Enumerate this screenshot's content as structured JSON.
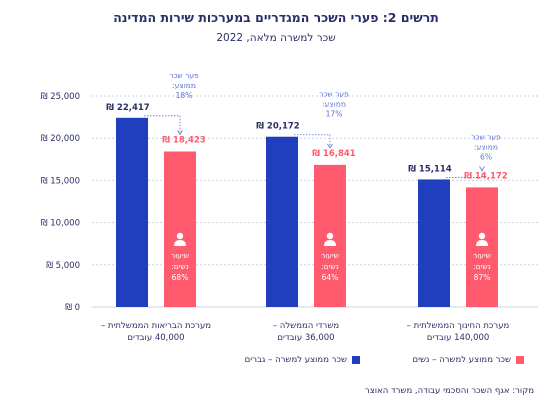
{
  "header": {
    "title": "תרשים 2: פערי השכר המגדריים במערכות שירות המדינה",
    "subtitle": "שכר למשרה מלאה, 2022"
  },
  "legend": {
    "men": "שכר ממוצע למשרה – גברים",
    "women": "שכר ממוצע למשרה – נשים"
  },
  "source": "מקור: אגף השכר והסכמי עבודה, משרד האוצר",
  "colors": {
    "men": "#1f3fbf",
    "women": "#ff5a6e",
    "grid": "#cfd3e4",
    "text": "#2b2f66",
    "gap": "#5b72d6"
  },
  "chart_data": {
    "type": "bar",
    "title": "תרשים 2: פערי השכר המגדריים במערכות שירות המדינה",
    "subtitle": "שכר למשרה מלאה, 2022",
    "categories": [
      [
        "מערכת הבריאות הממשלתית –",
        "40,000 עובדים"
      ],
      [
        "משרדי הממשלה –",
        "36,000 עובדים"
      ],
      [
        "מערכת החינוך הממשלתית –",
        "140,000 עובדים"
      ]
    ],
    "series": [
      {
        "name": "שכר ממוצע למשרה – גברים",
        "key": "men",
        "values": [
          22417,
          20172,
          15114
        ],
        "labels": [
          "₪ 22,417",
          "₪ 20,172",
          "₪ 15,114"
        ]
      },
      {
        "name": "שכר ממוצע למשרה – נשים",
        "key": "women",
        "values": [
          18423,
          16841,
          14172
        ],
        "labels": [
          "₪ 18,423",
          "₪ 16,841",
          "₪ 14,172"
        ]
      }
    ],
    "gap_labels": [
      [
        "פער שכר",
        "ממוצע:",
        "18%"
      ],
      [
        "פער שכר",
        "ממוצע:",
        "17%"
      ],
      [
        "פער שכר",
        "ממוצע:",
        "6%"
      ]
    ],
    "women_share_labels": [
      [
        "שיעור",
        "נשים:",
        "68%"
      ],
      [
        "שיעור",
        "נשים:",
        "64%"
      ],
      [
        "שיעור",
        "נשים:",
        "87%"
      ]
    ],
    "y_ticks": [
      0,
      5000,
      10000,
      15000,
      20000,
      25000
    ],
    "y_tick_labels": [
      "₪ 0",
      "₪ 5,000",
      "₪ 10,000",
      "₪ 15,000",
      "₪ 20,000",
      "₪ 25,000"
    ],
    "ylim": [
      0,
      25000
    ],
    "grid": true,
    "legend_position": "bottom"
  }
}
